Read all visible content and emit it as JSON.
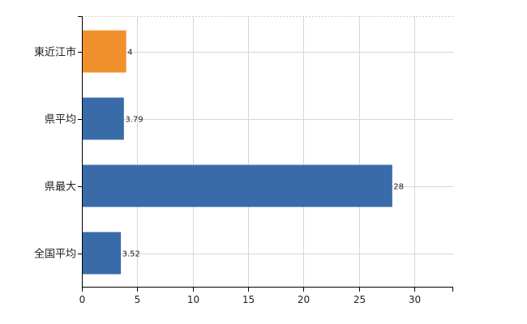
{
  "chart_data": {
    "type": "bar",
    "orientation": "horizontal",
    "title": "",
    "xlabel": "",
    "ylabel": "",
    "categories": [
      "東近江市",
      "県平均",
      "県最大",
      "全国平均"
    ],
    "values": [
      4,
      3.79,
      28,
      3.52
    ],
    "value_labels": [
      "4",
      "3.79",
      "28",
      "3.52"
    ],
    "bar_colors": [
      "#F0912E",
      "#3A6BA9",
      "#3A6BA9",
      "#3A6BA9"
    ],
    "xlim": [
      0,
      33.5
    ],
    "x_ticks": [
      0,
      5,
      10,
      15,
      20,
      25,
      30
    ],
    "grid": true,
    "legend": "none"
  }
}
